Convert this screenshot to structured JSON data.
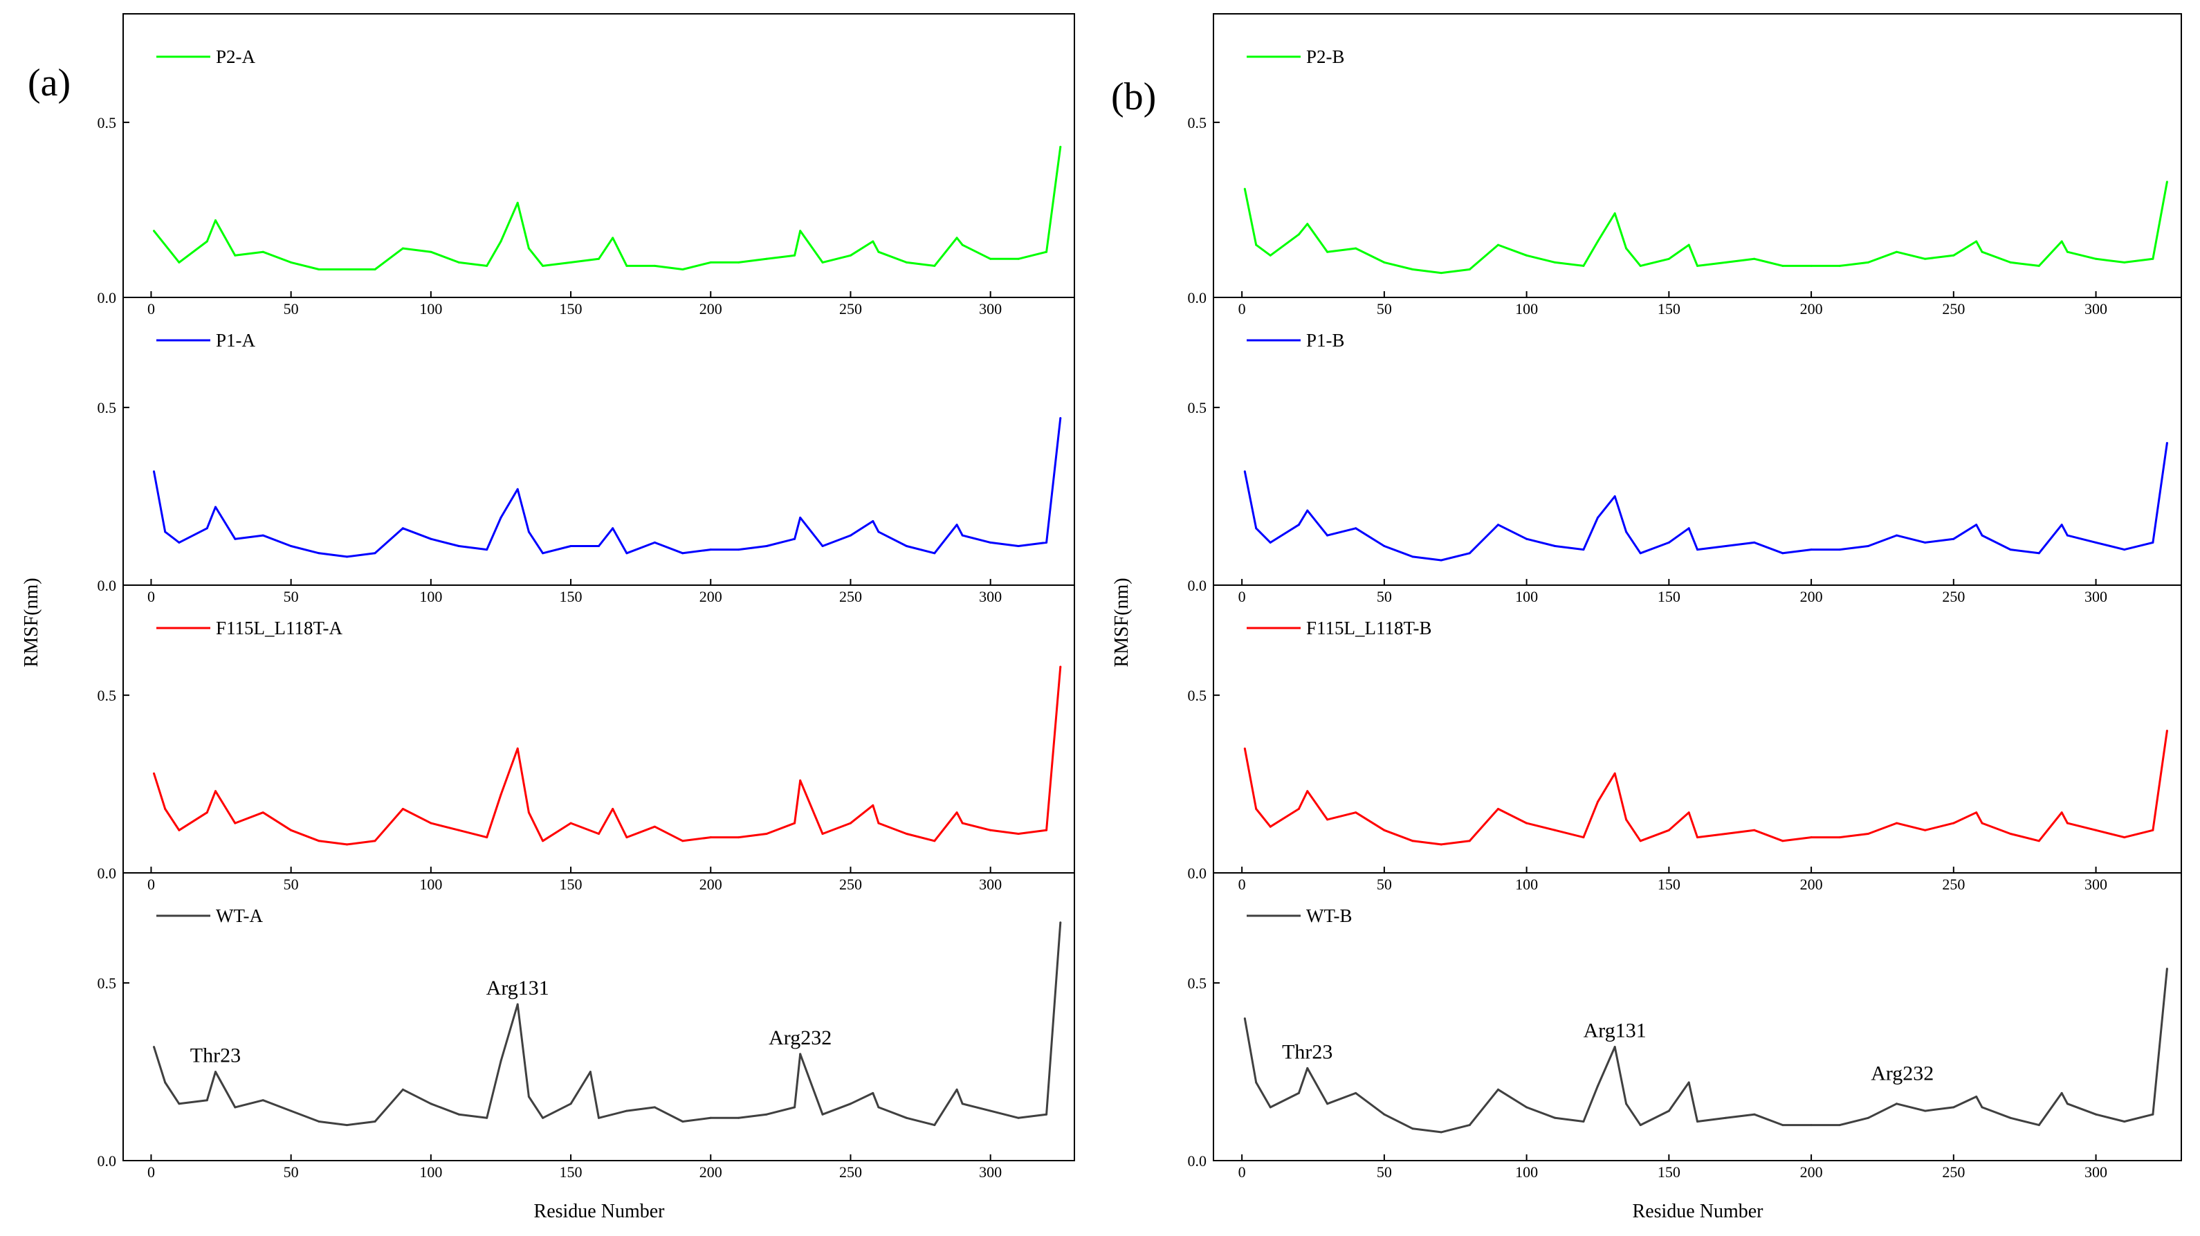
{
  "figure": {
    "panel_labels": [
      "(a)",
      "(b)"
    ],
    "xlabel": "Residue Number",
    "ylabel": "RMSF(nm)"
  },
  "chart_data": [
    {
      "type": "line",
      "panel": "(a)",
      "title": "",
      "series_name": "P2-A",
      "color": "#00ff00",
      "xlabel": "",
      "ylabel": "",
      "xlim": [
        -10,
        330
      ],
      "ylim": [
        0,
        0.8
      ],
      "xticks": [
        0,
        50,
        100,
        150,
        200,
        250,
        300
      ],
      "yticks": [
        0.0,
        0.5
      ],
      "ytick_labels": [
        "0.0",
        "0.5"
      ],
      "annotations": [],
      "x": [
        1,
        10,
        20,
        23,
        30,
        40,
        50,
        60,
        70,
        80,
        90,
        100,
        110,
        120,
        125,
        131,
        135,
        140,
        150,
        160,
        165,
        170,
        180,
        190,
        200,
        210,
        220,
        230,
        232,
        240,
        250,
        258,
        260,
        270,
        280,
        288,
        290,
        300,
        310,
        320,
        325
      ],
      "y": [
        0.19,
        0.1,
        0.16,
        0.22,
        0.12,
        0.13,
        0.1,
        0.08,
        0.08,
        0.08,
        0.14,
        0.13,
        0.1,
        0.09,
        0.16,
        0.27,
        0.14,
        0.09,
        0.1,
        0.11,
        0.17,
        0.09,
        0.09,
        0.08,
        0.1,
        0.1,
        0.11,
        0.12,
        0.19,
        0.1,
        0.12,
        0.16,
        0.13,
        0.1,
        0.09,
        0.17,
        0.15,
        0.11,
        0.11,
        0.13,
        0.43
      ]
    },
    {
      "type": "line",
      "panel": "(a)",
      "title": "",
      "series_name": "P1-A",
      "color": "#0000ff",
      "xlabel": "",
      "ylabel": "RMSF(nm)",
      "xlim": [
        -10,
        330
      ],
      "ylim": [
        0,
        0.8
      ],
      "xticks": [
        0,
        50,
        100,
        150,
        200,
        250,
        300
      ],
      "yticks": [
        0.0,
        0.5
      ],
      "ytick_labels": [
        "0.0",
        "0.5"
      ],
      "annotations": [],
      "x": [
        1,
        5,
        10,
        20,
        23,
        30,
        40,
        50,
        60,
        70,
        80,
        90,
        100,
        110,
        120,
        125,
        131,
        135,
        140,
        150,
        160,
        165,
        170,
        180,
        190,
        200,
        210,
        220,
        230,
        232,
        240,
        250,
        258,
        260,
        270,
        280,
        288,
        290,
        300,
        310,
        320,
        325
      ],
      "y": [
        0.32,
        0.15,
        0.12,
        0.16,
        0.22,
        0.13,
        0.14,
        0.11,
        0.09,
        0.08,
        0.09,
        0.16,
        0.13,
        0.11,
        0.1,
        0.19,
        0.27,
        0.15,
        0.09,
        0.11,
        0.11,
        0.16,
        0.09,
        0.12,
        0.09,
        0.1,
        0.1,
        0.11,
        0.13,
        0.19,
        0.11,
        0.14,
        0.18,
        0.15,
        0.11,
        0.09,
        0.17,
        0.14,
        0.12,
        0.11,
        0.12,
        0.47
      ]
    },
    {
      "type": "line",
      "panel": "(a)",
      "title": "",
      "series_name": "F115L_L118T-A",
      "color": "#ff0000",
      "xlabel": "",
      "ylabel": "",
      "xlim": [
        -10,
        330
      ],
      "ylim": [
        0,
        0.8
      ],
      "xticks": [
        0,
        50,
        100,
        150,
        200,
        250,
        300
      ],
      "yticks": [
        0.0,
        0.5
      ],
      "ytick_labels": [
        "0.0",
        "0.5"
      ],
      "annotations": [],
      "x": [
        1,
        5,
        10,
        20,
        23,
        30,
        40,
        50,
        60,
        70,
        80,
        90,
        100,
        110,
        120,
        125,
        131,
        135,
        140,
        150,
        160,
        165,
        170,
        180,
        190,
        200,
        210,
        220,
        230,
        232,
        240,
        250,
        258,
        260,
        270,
        280,
        288,
        290,
        300,
        310,
        320,
        325
      ],
      "y": [
        0.28,
        0.18,
        0.12,
        0.17,
        0.23,
        0.14,
        0.17,
        0.12,
        0.09,
        0.08,
        0.09,
        0.18,
        0.14,
        0.12,
        0.1,
        0.22,
        0.35,
        0.17,
        0.09,
        0.14,
        0.11,
        0.18,
        0.1,
        0.13,
        0.09,
        0.1,
        0.1,
        0.11,
        0.14,
        0.26,
        0.11,
        0.14,
        0.19,
        0.14,
        0.11,
        0.09,
        0.17,
        0.14,
        0.12,
        0.11,
        0.12,
        0.58
      ]
    },
    {
      "type": "line",
      "panel": "(a)",
      "title": "",
      "series_name": "WT-A",
      "color": "#404040",
      "xlabel": "Residue Number",
      "ylabel": "",
      "xlim": [
        -10,
        330
      ],
      "ylim": [
        0,
        0.8
      ],
      "xticks": [
        0,
        50,
        100,
        150,
        200,
        250,
        300
      ],
      "yticks": [
        0.0,
        0.5
      ],
      "ytick_labels": [
        "0.0",
        "0.5"
      ],
      "annotations": [
        {
          "text": "Thr23",
          "x": 23,
          "y": 0.25
        },
        {
          "text": "Arg131",
          "x": 131,
          "y": 0.44
        },
        {
          "text": "Arg232",
          "x": 232,
          "y": 0.3
        }
      ],
      "x": [
        1,
        5,
        10,
        20,
        23,
        30,
        40,
        50,
        60,
        70,
        80,
        90,
        100,
        110,
        120,
        125,
        131,
        135,
        140,
        150,
        157,
        160,
        170,
        180,
        190,
        200,
        210,
        220,
        230,
        232,
        240,
        250,
        258,
        260,
        270,
        280,
        288,
        290,
        300,
        310,
        320,
        325
      ],
      "y": [
        0.32,
        0.22,
        0.16,
        0.17,
        0.25,
        0.15,
        0.17,
        0.14,
        0.11,
        0.1,
        0.11,
        0.2,
        0.16,
        0.13,
        0.12,
        0.28,
        0.44,
        0.18,
        0.12,
        0.16,
        0.25,
        0.12,
        0.14,
        0.15,
        0.11,
        0.12,
        0.12,
        0.13,
        0.15,
        0.3,
        0.13,
        0.16,
        0.19,
        0.15,
        0.12,
        0.1,
        0.2,
        0.16,
        0.14,
        0.12,
        0.13,
        0.67
      ]
    },
    {
      "type": "line",
      "panel": "(b)",
      "title": "",
      "series_name": "P2-B",
      "color": "#00ff00",
      "xlabel": "",
      "ylabel": "",
      "xlim": [
        -10,
        330
      ],
      "ylim": [
        0,
        0.8
      ],
      "xticks": [
        0,
        50,
        100,
        150,
        200,
        250,
        300
      ],
      "yticks": [
        0.0,
        0.5
      ],
      "ytick_labels": [
        "0.0",
        "0.5"
      ],
      "annotations": [],
      "x": [
        1,
        5,
        10,
        20,
        23,
        30,
        40,
        50,
        60,
        70,
        80,
        90,
        100,
        110,
        120,
        125,
        131,
        135,
        140,
        150,
        157,
        160,
        170,
        180,
        190,
        200,
        210,
        220,
        230,
        240,
        250,
        258,
        260,
        270,
        280,
        288,
        290,
        300,
        310,
        320,
        325
      ],
      "y": [
        0.31,
        0.15,
        0.12,
        0.18,
        0.21,
        0.13,
        0.14,
        0.1,
        0.08,
        0.07,
        0.08,
        0.15,
        0.12,
        0.1,
        0.09,
        0.16,
        0.24,
        0.14,
        0.09,
        0.11,
        0.15,
        0.09,
        0.1,
        0.11,
        0.09,
        0.09,
        0.09,
        0.1,
        0.13,
        0.11,
        0.12,
        0.16,
        0.13,
        0.1,
        0.09,
        0.16,
        0.13,
        0.11,
        0.1,
        0.11,
        0.33
      ]
    },
    {
      "type": "line",
      "panel": "(b)",
      "title": "",
      "series_name": "P1-B",
      "color": "#0000ff",
      "xlabel": "",
      "ylabel": "RMSF(nm)",
      "xlim": [
        -10,
        330
      ],
      "ylim": [
        0,
        0.8
      ],
      "xticks": [
        0,
        50,
        100,
        150,
        200,
        250,
        300
      ],
      "yticks": [
        0.0,
        0.5
      ],
      "ytick_labels": [
        "0.0",
        "0.5"
      ],
      "annotations": [],
      "x": [
        1,
        5,
        10,
        20,
        23,
        30,
        40,
        50,
        60,
        70,
        80,
        90,
        100,
        110,
        120,
        125,
        131,
        135,
        140,
        150,
        157,
        160,
        170,
        180,
        190,
        200,
        210,
        220,
        230,
        240,
        250,
        258,
        260,
        270,
        280,
        288,
        290,
        300,
        310,
        320,
        325
      ],
      "y": [
        0.32,
        0.16,
        0.12,
        0.17,
        0.21,
        0.14,
        0.16,
        0.11,
        0.08,
        0.07,
        0.09,
        0.17,
        0.13,
        0.11,
        0.1,
        0.19,
        0.25,
        0.15,
        0.09,
        0.12,
        0.16,
        0.1,
        0.11,
        0.12,
        0.09,
        0.1,
        0.1,
        0.11,
        0.14,
        0.12,
        0.13,
        0.17,
        0.14,
        0.1,
        0.09,
        0.17,
        0.14,
        0.12,
        0.1,
        0.12,
        0.4
      ]
    },
    {
      "type": "line",
      "panel": "(b)",
      "title": "",
      "series_name": "F115L_L118T-B",
      "color": "#ff0000",
      "xlabel": "",
      "ylabel": "",
      "xlim": [
        -10,
        330
      ],
      "ylim": [
        0,
        0.8
      ],
      "xticks": [
        0,
        50,
        100,
        150,
        200,
        250,
        300
      ],
      "yticks": [
        0.0,
        0.5
      ],
      "ytick_labels": [
        "0.0",
        "0.5"
      ],
      "annotations": [],
      "x": [
        1,
        5,
        10,
        20,
        23,
        30,
        40,
        50,
        60,
        70,
        80,
        90,
        100,
        110,
        120,
        125,
        131,
        135,
        140,
        150,
        157,
        160,
        170,
        180,
        190,
        200,
        210,
        220,
        230,
        240,
        250,
        258,
        260,
        270,
        280,
        288,
        290,
        300,
        310,
        320,
        325
      ],
      "y": [
        0.35,
        0.18,
        0.13,
        0.18,
        0.23,
        0.15,
        0.17,
        0.12,
        0.09,
        0.08,
        0.09,
        0.18,
        0.14,
        0.12,
        0.1,
        0.2,
        0.28,
        0.15,
        0.09,
        0.12,
        0.17,
        0.1,
        0.11,
        0.12,
        0.09,
        0.1,
        0.1,
        0.11,
        0.14,
        0.12,
        0.14,
        0.17,
        0.14,
        0.11,
        0.09,
        0.17,
        0.14,
        0.12,
        0.1,
        0.12,
        0.4
      ]
    },
    {
      "type": "line",
      "panel": "(b)",
      "title": "",
      "series_name": "WT-B",
      "color": "#404040",
      "xlabel": "Residue Number",
      "ylabel": "",
      "xlim": [
        -10,
        330
      ],
      "ylim": [
        0,
        0.8
      ],
      "xticks": [
        0,
        50,
        100,
        150,
        200,
        250,
        300
      ],
      "yticks": [
        0.0,
        0.5
      ],
      "ytick_labels": [
        "0.0",
        "0.5"
      ],
      "annotations": [
        {
          "text": "Thr23",
          "x": 23,
          "y": 0.26
        },
        {
          "text": "Arg131",
          "x": 131,
          "y": 0.32
        },
        {
          "text": "Arg232",
          "x": 232,
          "y": 0.2
        }
      ],
      "x": [
        1,
        5,
        10,
        20,
        23,
        30,
        40,
        50,
        60,
        70,
        80,
        90,
        100,
        110,
        120,
        125,
        131,
        135,
        140,
        150,
        157,
        160,
        170,
        180,
        190,
        200,
        210,
        220,
        230,
        240,
        250,
        258,
        260,
        270,
        280,
        288,
        290,
        300,
        310,
        320,
        325
      ],
      "y": [
        0.4,
        0.22,
        0.15,
        0.19,
        0.26,
        0.16,
        0.19,
        0.13,
        0.09,
        0.08,
        0.1,
        0.2,
        0.15,
        0.12,
        0.11,
        0.21,
        0.32,
        0.16,
        0.1,
        0.14,
        0.22,
        0.11,
        0.12,
        0.13,
        0.1,
        0.1,
        0.1,
        0.12,
        0.16,
        0.14,
        0.15,
        0.18,
        0.15,
        0.12,
        0.1,
        0.19,
        0.16,
        0.13,
        0.11,
        0.13,
        0.54
      ]
    }
  ]
}
